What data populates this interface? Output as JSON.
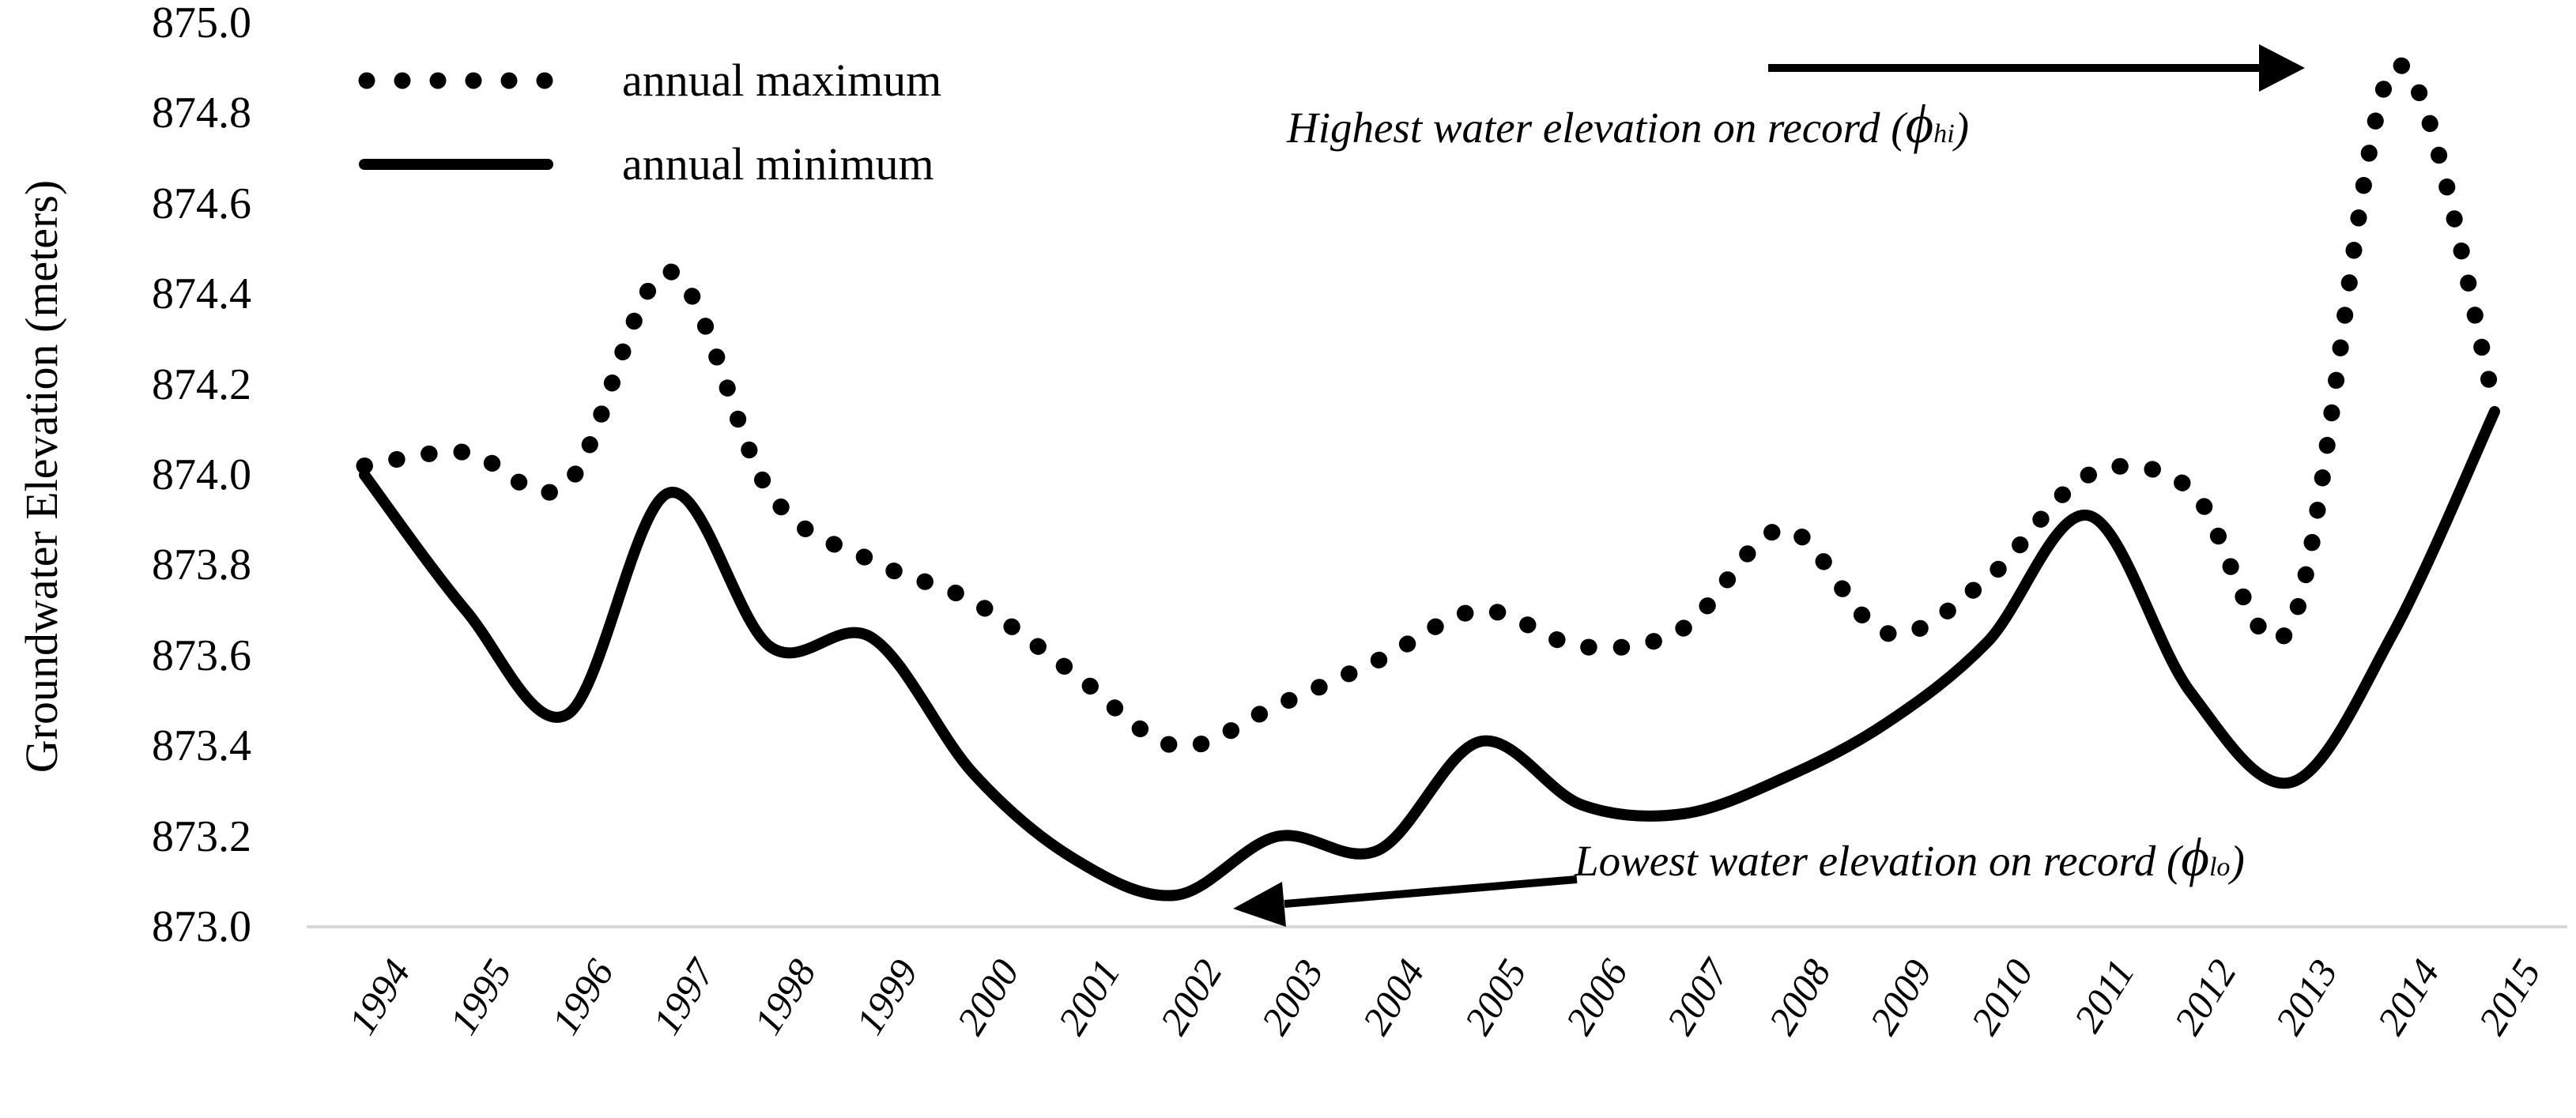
{
  "colors": {
    "series": "#000000",
    "baseline": "#d9d9d9",
    "background": "#ffffff"
  },
  "y_axis": {
    "title": "Groundwater Elevation (meters)",
    "tick_labels": [
      "875.0",
      "874.8",
      "874.6",
      "874.4",
      "874.2",
      "874.0",
      "873.8",
      "873.6",
      "873.4",
      "873.2",
      "873.0"
    ]
  },
  "legend": {
    "max_label": "annual maximum",
    "min_label": "annual minimum"
  },
  "annotations": {
    "highest": {
      "prefix": "Highest water elevation on record (",
      "phi": "ϕ",
      "sub": "hi",
      "suffix": ")"
    },
    "lowest": {
      "prefix": "Lowest water elevation on record (",
      "phi": "ϕ",
      "sub": "lo",
      "suffix": ")"
    }
  },
  "chart_data": {
    "type": "line",
    "x": [
      1994,
      1995,
      1996,
      1997,
      1998,
      1999,
      2000,
      2001,
      2002,
      2003,
      2004,
      2005,
      2006,
      2007,
      2008,
      2009,
      2010,
      2011,
      2012,
      2013,
      2014,
      2015
    ],
    "series": [
      {
        "name": "annual maximum",
        "style": "dotted",
        "values": [
          874.02,
          874.05,
          873.98,
          874.45,
          873.96,
          873.81,
          873.72,
          873.56,
          873.4,
          873.49,
          873.59,
          873.7,
          873.62,
          873.66,
          873.88,
          873.65,
          873.77,
          874.0,
          873.97,
          873.67,
          874.9,
          874.16
        ]
      },
      {
        "name": "annual minimum",
        "style": "solid",
        "values": [
          874.0,
          873.7,
          873.47,
          873.96,
          873.62,
          873.64,
          873.34,
          873.15,
          873.07,
          873.2,
          873.17,
          873.41,
          873.27,
          873.25,
          873.33,
          873.45,
          873.63,
          873.91,
          873.52,
          873.32,
          873.65,
          874.14
        ]
      }
    ],
    "ylim": [
      873.0,
      875.0
    ],
    "ytick_step": 0.2,
    "xlabel": "",
    "ylabel": "Groundwater Elevation (meters)",
    "grid": false,
    "legend_position": "top-left",
    "annotations": [
      "Highest water elevation on record (ϕhi)",
      "Lowest water elevation on record (ϕlo)"
    ]
  }
}
